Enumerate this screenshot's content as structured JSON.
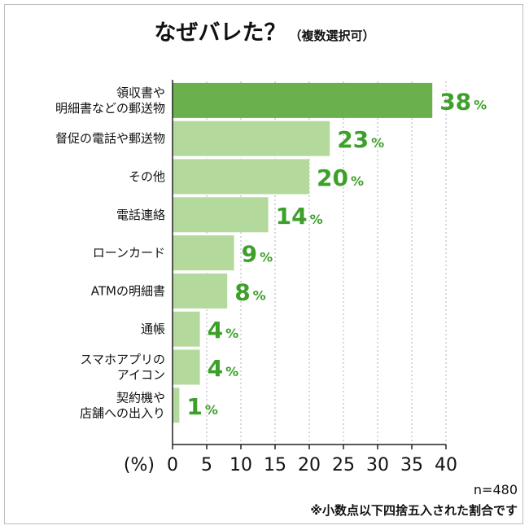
{
  "title": "なぜバレた？",
  "subtitle": "（複数選択可）",
  "colors": {
    "bar_top": "#6ab04c",
    "bar_other": "#b4d99c",
    "value_text": "#3da02a",
    "grid": "#b0b0b0",
    "axis": "#222222"
  },
  "chart_data": {
    "type": "bar",
    "orientation": "horizontal",
    "title": "なぜバレた？（複数選択可）",
    "categories": [
      [
        "領収書や",
        "明細書などの郵送物"
      ],
      [
        "督促の電話や郵送物"
      ],
      [
        "その他"
      ],
      [
        "電話連絡"
      ],
      [
        "ローンカード"
      ],
      [
        "ATMの明細書"
      ],
      [
        "通帳"
      ],
      [
        "スマホアプリの",
        "アイコン"
      ],
      [
        "契約機や",
        "店舗への出入り"
      ]
    ],
    "values": [
      38,
      23,
      20,
      14,
      9,
      8,
      4,
      4,
      1
    ],
    "value_suffix": "%",
    "xlim": [
      0,
      40
    ],
    "xticks": [
      0,
      5,
      10,
      15,
      20,
      25,
      30,
      35,
      40
    ],
    "xlabel": "(%)",
    "grid": true
  },
  "notes": {
    "sample": "n=480",
    "rounding": "※小数点以下四捨五入された割合です"
  }
}
